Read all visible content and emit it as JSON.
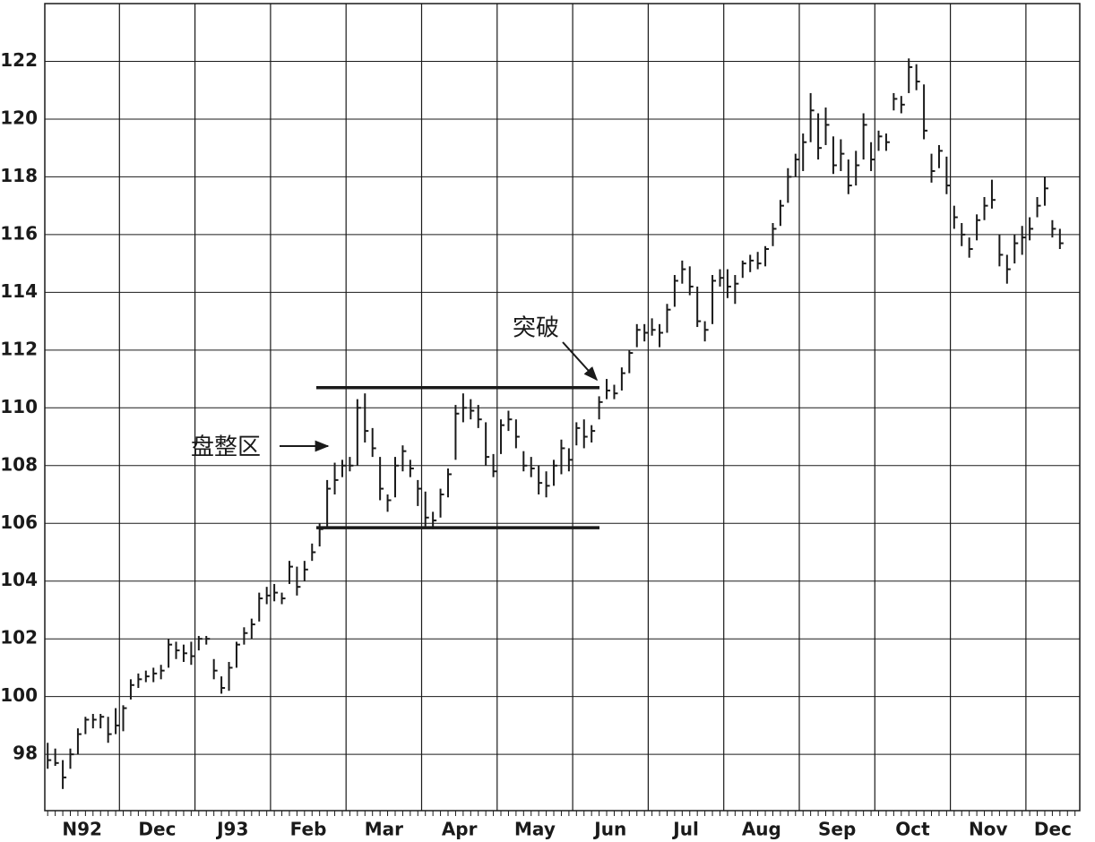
{
  "chart_data": {
    "type": "ohlc",
    "categories": [
      "N92",
      "Dec",
      "J93",
      "Feb",
      "Mar",
      "Apr",
      "May",
      "Jun",
      "Jul",
      "Aug",
      "Sep",
      "Oct",
      "Nov",
      "Dec"
    ],
    "ylim": [
      96.05,
      124.0
    ],
    "yticks": [
      98,
      100,
      102,
      104,
      106,
      108,
      110,
      112,
      114,
      116,
      118,
      120,
      122
    ],
    "grid": true,
    "color": "#1a1a1a",
    "bars": [
      [
        [
          98.4,
          97.5,
          97.8
        ],
        [
          98.2,
          97.6,
          97.7
        ],
        [
          97.8,
          96.8,
          97.2
        ],
        [
          98.2,
          97.5,
          98.0
        ],
        [
          98.9,
          98.0,
          98.7
        ],
        [
          99.3,
          98.7,
          99.2
        ],
        [
          99.4,
          98.9,
          99.2
        ],
        [
          99.4,
          98.9,
          99.3
        ],
        [
          99.3,
          98.4,
          98.7
        ],
        [
          99.6,
          98.7,
          99.0
        ]
      ],
      [
        [
          99.7,
          98.8,
          99.6
        ],
        [
          100.6,
          99.9,
          100.4
        ],
        [
          100.8,
          100.3,
          100.6
        ],
        [
          100.9,
          100.5,
          100.7
        ],
        [
          101.0,
          100.5,
          100.8
        ],
        [
          101.1,
          100.6,
          100.9
        ],
        [
          102.0,
          101.0,
          101.8
        ],
        [
          101.9,
          101.3,
          101.6
        ],
        [
          101.8,
          101.2,
          101.5
        ],
        [
          101.9,
          101.1,
          101.4
        ]
      ],
      [
        [
          102.1,
          101.6,
          102.0
        ],
        [
          102.1,
          101.8,
          102.0
        ],
        [
          101.3,
          100.6,
          100.9
        ],
        [
          100.7,
          100.1,
          100.3
        ],
        [
          101.2,
          100.2,
          101.0
        ],
        [
          101.9,
          101.0,
          101.8
        ],
        [
          102.4,
          101.8,
          102.2
        ],
        [
          102.7,
          102.0,
          102.5
        ],
        [
          103.6,
          102.6,
          103.4
        ],
        [
          103.8,
          103.2,
          103.5
        ]
      ],
      [
        [
          103.9,
          103.3,
          103.6
        ],
        [
          103.6,
          103.2,
          103.4
        ],
        [
          104.7,
          103.9,
          104.5
        ],
        [
          104.5,
          103.5,
          103.8
        ],
        [
          104.7,
          104.0,
          104.4
        ],
        [
          105.3,
          104.7,
          105.0
        ],
        [
          106.0,
          105.2,
          105.8
        ],
        [
          107.5,
          105.9,
          107.2
        ],
        [
          108.1,
          107.0,
          107.5
        ],
        [
          108.2,
          107.6,
          108.0
        ]
      ],
      [
        [
          108.3,
          107.8,
          108.0
        ],
        [
          110.3,
          108.0,
          110.0
        ],
        [
          110.5,
          108.8,
          109.2
        ],
        [
          109.3,
          108.3,
          108.6
        ],
        [
          108.3,
          106.8,
          107.2
        ],
        [
          107.0,
          106.4,
          106.8
        ],
        [
          108.3,
          106.9,
          108.0
        ],
        [
          108.7,
          107.8,
          108.5
        ],
        [
          108.2,
          107.6,
          107.9
        ],
        [
          107.5,
          106.6,
          107.2
        ]
      ],
      [
        [
          107.1,
          105.9,
          106.2
        ],
        [
          106.4,
          105.8,
          106.1
        ],
        [
          107.2,
          106.2,
          107.0
        ],
        [
          107.9,
          106.9,
          107.7
        ],
        [
          110.1,
          108.2,
          109.8
        ],
        [
          110.5,
          109.5,
          110.0
        ],
        [
          110.3,
          109.6,
          109.9
        ],
        [
          110.1,
          109.3,
          109.6
        ],
        [
          109.5,
          108.0,
          108.3
        ],
        [
          108.4,
          107.6,
          107.8
        ]
      ],
      [
        [
          109.6,
          108.4,
          109.4
        ],
        [
          109.9,
          109.2,
          109.6
        ],
        [
          109.6,
          108.6,
          109.0
        ],
        [
          108.5,
          107.8,
          108.0
        ],
        [
          108.3,
          107.6,
          107.9
        ],
        [
          108.0,
          107.0,
          107.4
        ],
        [
          107.8,
          106.9,
          107.3
        ],
        [
          108.2,
          107.3,
          108.0
        ],
        [
          108.9,
          107.7,
          108.6
        ],
        [
          108.6,
          107.8,
          108.2
        ]
      ],
      [
        [
          109.5,
          108.7,
          109.3
        ],
        [
          109.6,
          108.6,
          109.0
        ],
        [
          109.4,
          108.8,
          109.2
        ],
        [
          110.4,
          109.6,
          110.2
        ],
        [
          111.0,
          110.3,
          110.6
        ],
        [
          110.8,
          110.3,
          110.5
        ],
        [
          111.4,
          110.6,
          111.2
        ],
        [
          112.0,
          111.2,
          111.9
        ],
        [
          112.9,
          112.1,
          112.7
        ],
        [
          112.9,
          112.3,
          112.6
        ]
      ],
      [
        [
          113.1,
          112.5,
          112.7
        ],
        [
          112.9,
          112.1,
          112.6
        ],
        [
          113.6,
          112.6,
          113.4
        ],
        [
          114.6,
          113.5,
          114.4
        ],
        [
          115.1,
          114.3,
          114.8
        ],
        [
          114.9,
          113.9,
          114.2
        ],
        [
          114.2,
          112.8,
          113.0
        ],
        [
          113.0,
          112.3,
          112.7
        ],
        [
          114.6,
          112.9,
          114.4
        ],
        [
          114.8,
          114.2,
          114.5
        ]
      ],
      [
        [
          114.8,
          113.8,
          114.2
        ],
        [
          114.6,
          113.6,
          114.3
        ],
        [
          115.1,
          114.5,
          115.0
        ],
        [
          115.3,
          114.7,
          115.1
        ],
        [
          115.4,
          114.8,
          115.0
        ],
        [
          115.6,
          114.9,
          115.5
        ],
        [
          116.4,
          115.6,
          116.2
        ],
        [
          117.2,
          116.3,
          117.0
        ],
        [
          118.3,
          117.1,
          118.0
        ],
        [
          118.8,
          118.0,
          118.6
        ]
      ],
      [
        [
          119.5,
          118.2,
          119.2
        ],
        [
          120.9,
          119.2,
          120.3
        ],
        [
          120.2,
          118.6,
          119.0
        ],
        [
          120.4,
          119.1,
          119.8
        ],
        [
          119.4,
          118.1,
          118.4
        ],
        [
          119.3,
          118.2,
          118.8
        ],
        [
          118.6,
          117.4,
          117.7
        ],
        [
          118.9,
          117.7,
          118.4
        ],
        [
          120.2,
          118.6,
          119.8
        ],
        [
          119.2,
          118.2,
          118.6
        ]
      ],
      [
        [
          119.6,
          118.9,
          119.4
        ],
        [
          119.5,
          118.9,
          119.2
        ],
        [
          120.9,
          120.3,
          120.7
        ],
        [
          120.8,
          120.2,
          120.5
        ],
        [
          122.1,
          120.9,
          121.8
        ],
        [
          121.9,
          121.0,
          121.3
        ],
        [
          121.2,
          119.3,
          119.6
        ],
        [
          118.8,
          117.8,
          118.2
        ],
        [
          119.1,
          118.3,
          118.9
        ],
        [
          118.7,
          117.4,
          117.7
        ]
      ],
      [
        [
          117.0,
          116.2,
          116.6
        ],
        [
          116.4,
          115.6,
          116.0
        ],
        [
          115.9,
          115.2,
          115.5
        ],
        [
          116.7,
          115.8,
          116.5
        ],
        [
          117.3,
          116.5,
          117.0
        ],
        [
          117.9,
          116.9,
          117.2
        ],
        [
          116.0,
          114.9,
          115.3
        ],
        [
          115.3,
          114.3,
          114.8
        ],
        [
          116.0,
          115.0,
          115.7
        ],
        [
          116.3,
          115.3,
          115.9
        ]
      ],
      [
        [
          116.6,
          115.8,
          116.2
        ],
        [
          117.3,
          116.6,
          117.0
        ],
        [
          118.0,
          117.0,
          117.6
        ],
        [
          116.5,
          115.9,
          116.2
        ],
        [
          116.2,
          115.5,
          115.7
        ]
      ]
    ],
    "levels": [
      110.7,
      105.85
    ],
    "annotations": [
      "盘整区",
      "突破"
    ]
  }
}
